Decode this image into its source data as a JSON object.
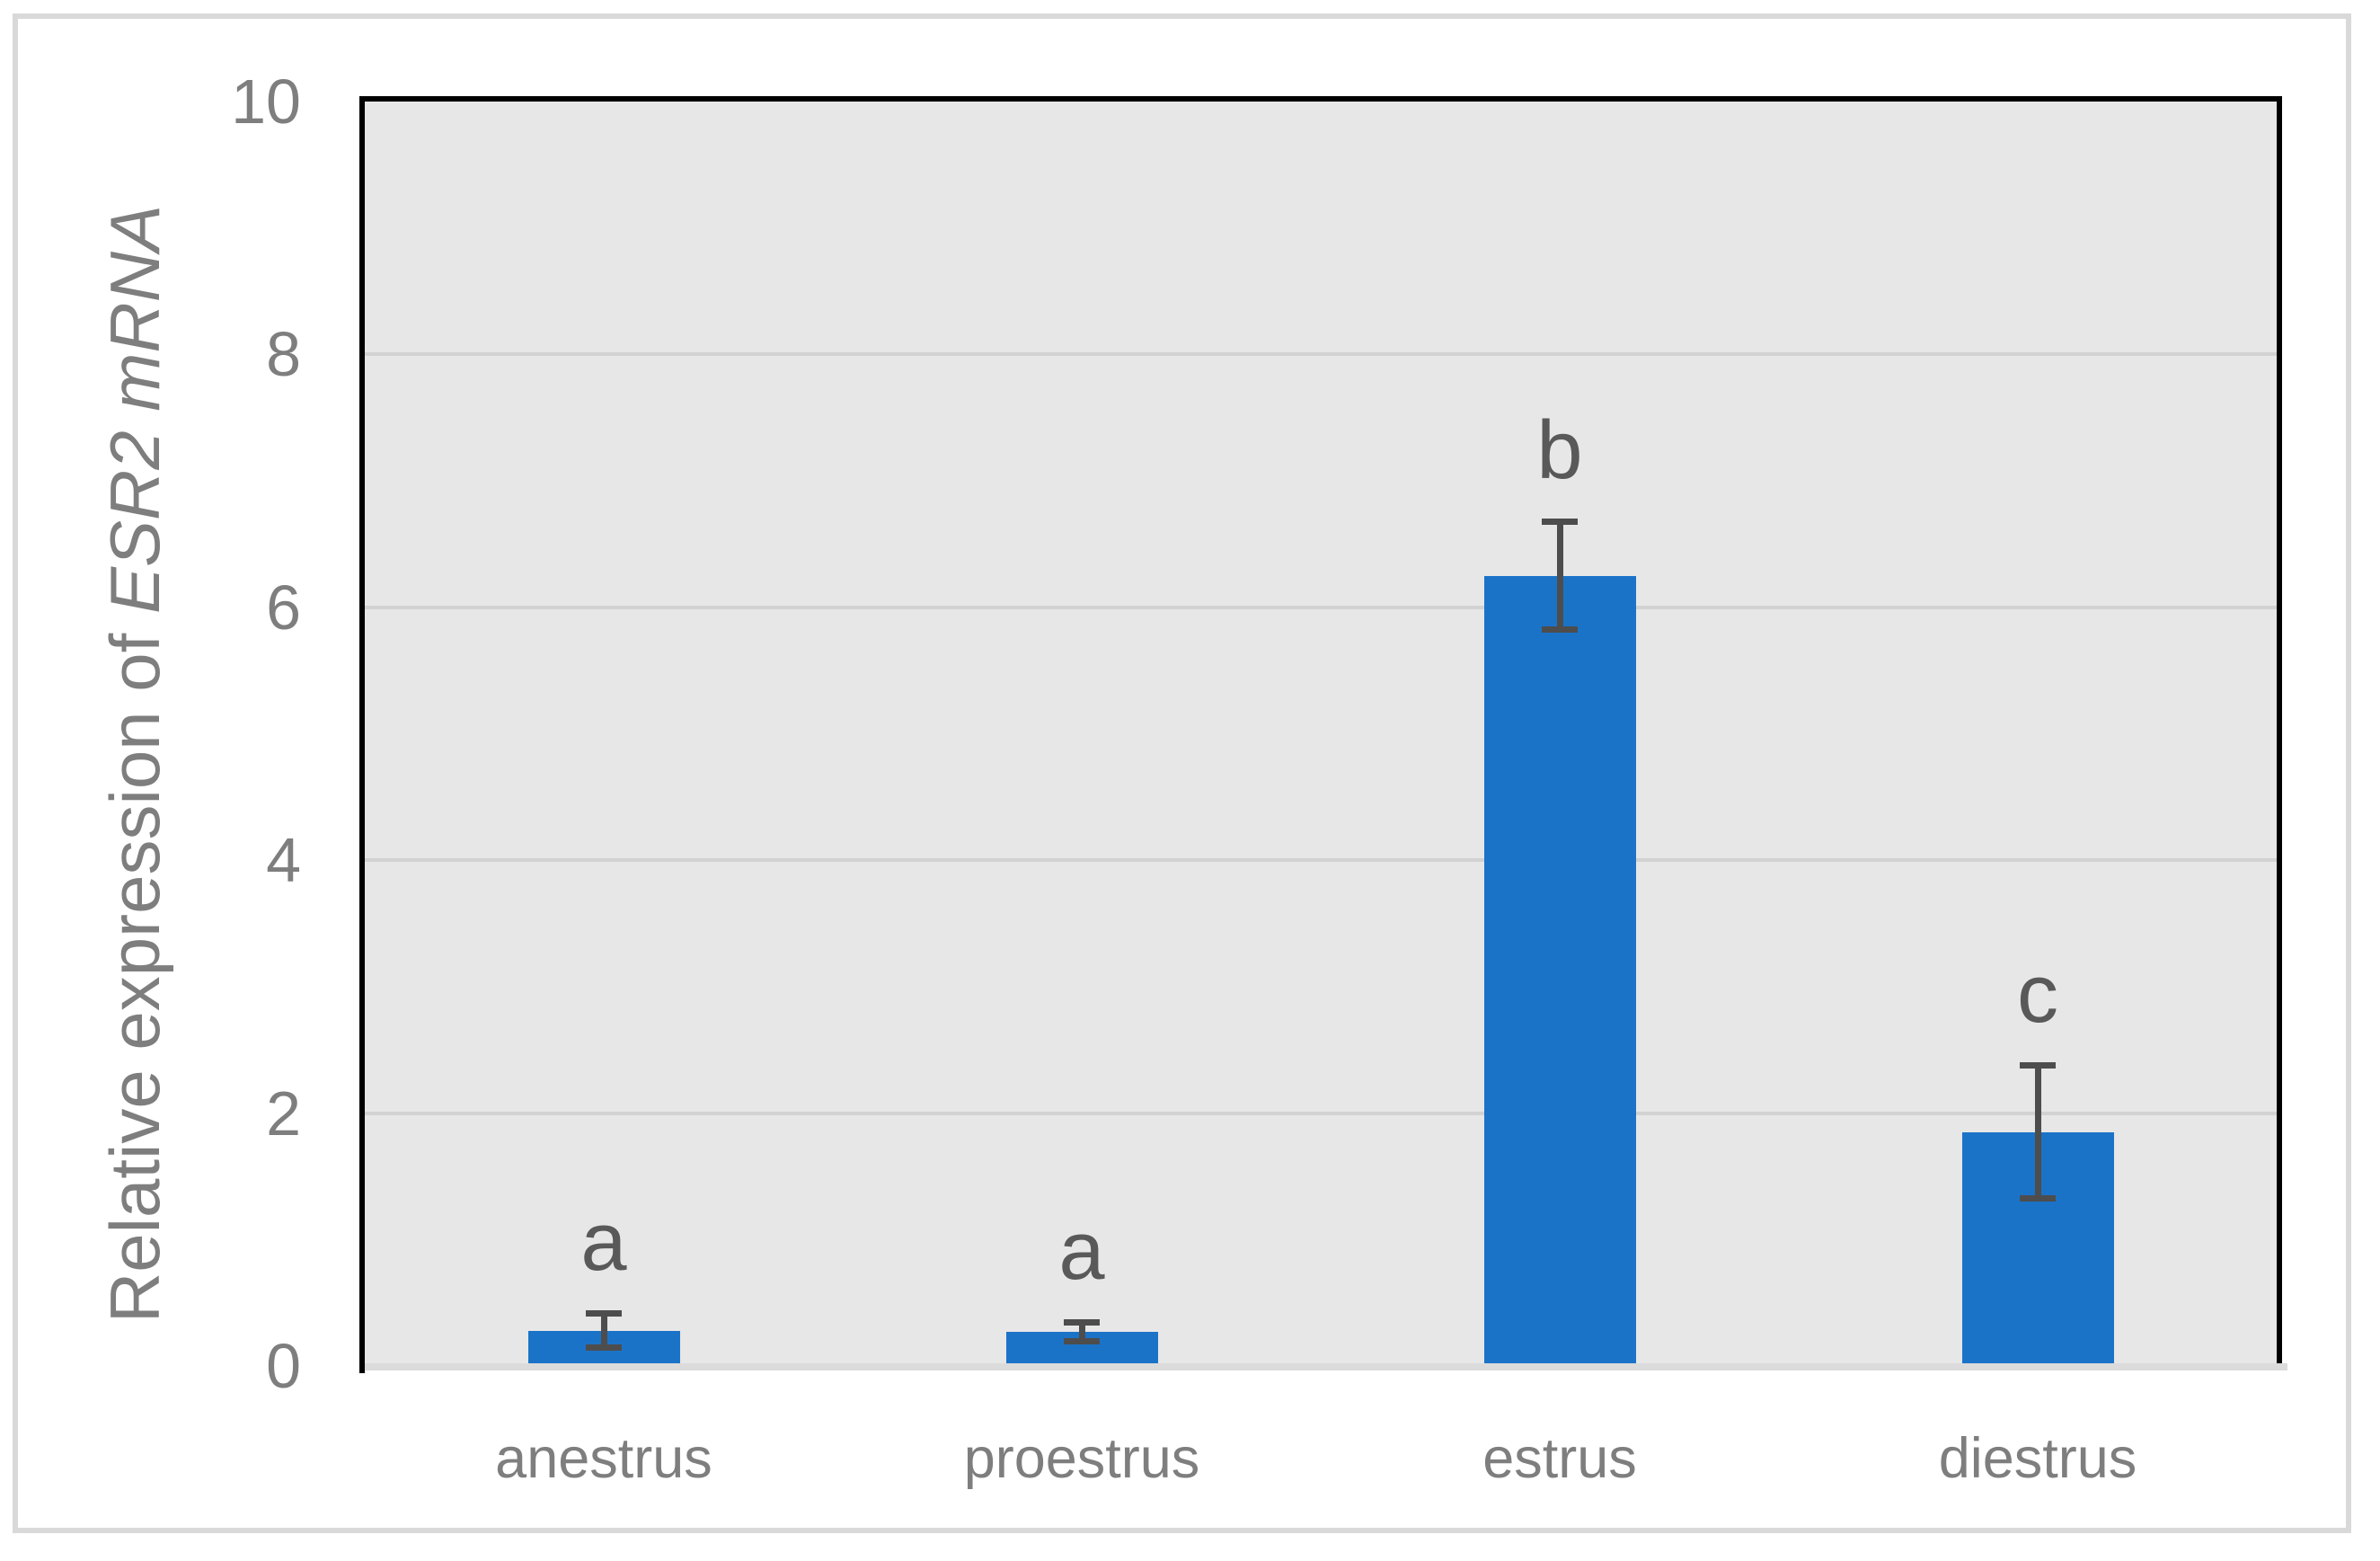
{
  "chart_data": {
    "type": "bar",
    "title": "",
    "ylabel_regular": "Relative expression of ",
    "ylabel_italic": "ESR2 mRNA",
    "categories": [
      "anestrus",
      "proestrus",
      "estrus",
      "diestrus"
    ],
    "values": [
      0.28,
      0.27,
      6.25,
      1.85
    ],
    "error_bars": [
      0.16,
      0.1,
      0.45,
      0.55
    ],
    "sig_letters": [
      "a",
      "a",
      "b",
      "c"
    ],
    "yticks": [
      "0",
      "2",
      "4",
      "6",
      "8",
      "10"
    ],
    "ylim": [
      0,
      10
    ],
    "gridline_values": [
      2,
      4,
      6,
      8
    ],
    "grid": true,
    "legend": false,
    "xlabel": "",
    "colors": {
      "bar": "#1b73c8",
      "error_bar": "#4d4d4d",
      "sig_letter": "#595959",
      "axis_text": "#7e7e7e",
      "plot_background": "#e7e7e7",
      "gridline": "#d2d2d2",
      "plot_border": "#000000",
      "axis_line": "#dbdbdb",
      "figure_border": "#d9d9d9",
      "figure_background": "#ffffff"
    }
  }
}
